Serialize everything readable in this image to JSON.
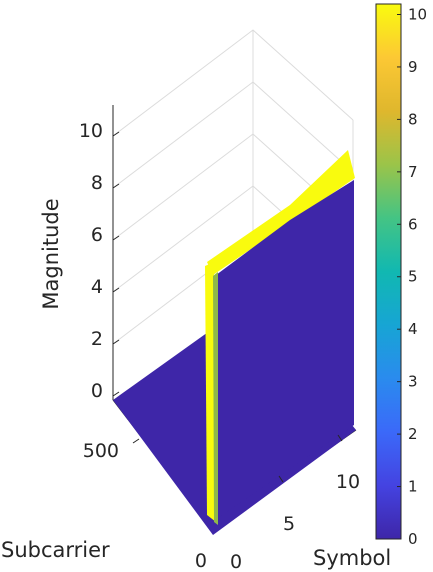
{
  "chart_data": {
    "type": "surface",
    "title": "",
    "xlabel": "Symbol",
    "ylabel": "Subcarrier",
    "zlabel": "Magnitude",
    "x_ticks": [
      "0",
      "5",
      "10"
    ],
    "y_ticks": [
      "0",
      "500"
    ],
    "z_ticks": [
      "0",
      "2",
      "4",
      "6",
      "8",
      "10"
    ],
    "zlim": [
      0,
      10
    ],
    "colorbar": {
      "ticks": [
        "0",
        "1",
        "2",
        "3",
        "4",
        "5",
        "6",
        "7",
        "8",
        "9",
        "10"
      ],
      "range": [
        0,
        10.2
      ],
      "colormap": "parula"
    },
    "surface_description_values": {
      "subcarrier_edge_magnitude": 10,
      "interior_magnitude": 0,
      "symbol_range": [
        0,
        11
      ]
    },
    "colors": {
      "low": "#3e26a8",
      "high": "#f9fb0e",
      "grid": "#dcdcdc",
      "axis": "#262626"
    }
  }
}
